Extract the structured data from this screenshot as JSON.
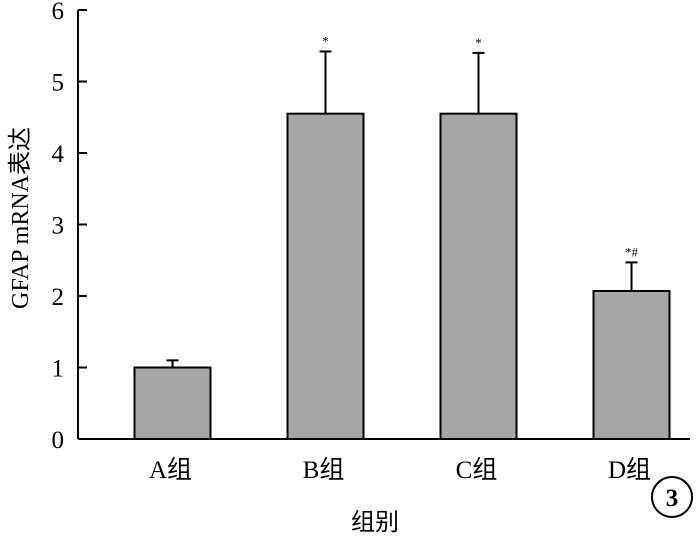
{
  "chart_data": {
    "type": "bar",
    "categories": [
      "A组",
      "B组",
      "C组",
      "D组"
    ],
    "values": [
      1.0,
      4.55,
      4.55,
      2.07
    ],
    "errors": [
      0.1,
      0.87,
      0.85,
      0.4
    ],
    "annotations": [
      "",
      "*",
      "*",
      "*#"
    ],
    "ylabel": "GFAP mRNA表达",
    "xlabel": "组别",
    "ylim": [
      0,
      6
    ],
    "yticks": [
      "0",
      "1",
      "2",
      "3",
      "4",
      "5",
      "6"
    ],
    "bar_color": "#a6a6a6",
    "grid": false,
    "panel_label": "3"
  }
}
